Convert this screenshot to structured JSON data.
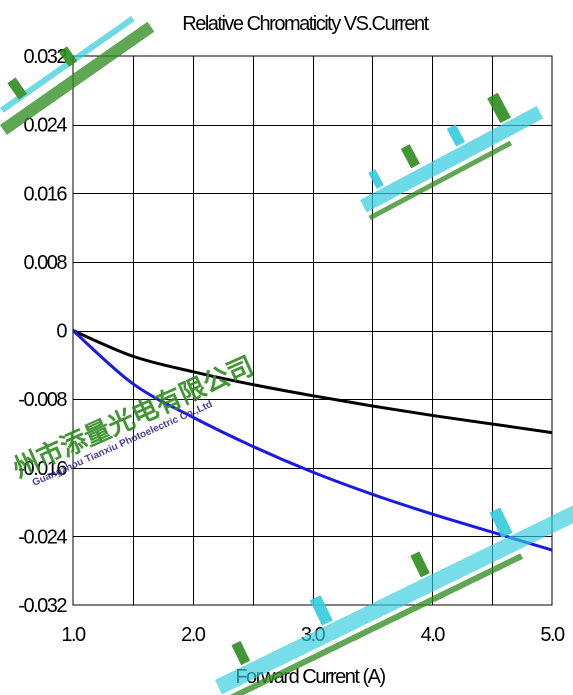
{
  "chart_data": {
    "type": "line",
    "title": "Relative Chromaticity VS.Current",
    "xlabel": "Forward Current (A)",
    "ylabel": "",
    "xlim": [
      1.0,
      5.0
    ],
    "ylim": [
      -0.032,
      0.032
    ],
    "x_ticks": [
      1.0,
      2.0,
      3.0,
      4.0,
      5.0
    ],
    "x_tick_labels": [
      "1.0",
      "2.0",
      "3.0",
      "4.0",
      "5.0"
    ],
    "y_ticks": [
      0.032,
      0.024,
      0.016,
      0.008,
      0,
      -0.008,
      -0.016,
      -0.024,
      -0.032
    ],
    "y_tick_labels": [
      "0.032",
      "0.024",
      "0.016",
      "0.008",
      "0",
      "-0.008",
      "-0.016",
      "-0.024",
      "-0.032"
    ],
    "grid": true,
    "series": [
      {
        "color": "#000000",
        "x": [
          1.0,
          1.5,
          2.0,
          2.5,
          3.0,
          3.5,
          4.0,
          4.5,
          5.0
        ],
        "y": [
          0.0,
          -0.003,
          -0.0048,
          -0.0063,
          -0.0076,
          -0.0088,
          -0.0099,
          -0.0109,
          -0.0119
        ]
      },
      {
        "color": "#1a1ae0",
        "x": [
          1.0,
          1.5,
          2.0,
          2.5,
          3.0,
          3.5,
          4.0,
          4.5,
          5.0
        ],
        "y": [
          0.0,
          -0.0062,
          -0.0101,
          -0.0135,
          -0.0165,
          -0.0191,
          -0.0214,
          -0.0235,
          -0.0256
        ]
      }
    ]
  },
  "watermark": {
    "company_cn": "州市添量光电有限公司",
    "company_en": "Guangzhou Tianxiu Photoelectric Co.,Ltd",
    "color": "#2e8b1e",
    "accent_color": "#33ccdd"
  }
}
